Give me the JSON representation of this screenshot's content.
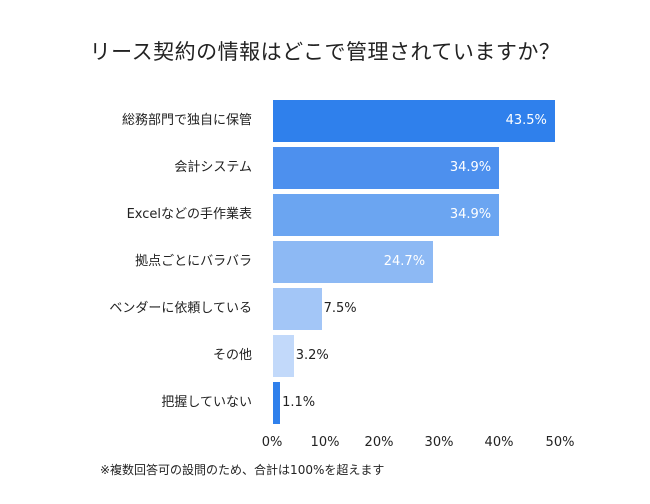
{
  "chart_data": {
    "type": "bar",
    "orientation": "horizontal",
    "title": "リース契約の情報はどこで管理されていますか？",
    "categories": [
      "総務部門で独自に保管",
      "会計システム",
      "Excelなどの手作業表",
      "拠点ごとにバラバラ",
      "ベンダーに依頼している",
      "その他",
      "把握していない"
    ],
    "values": [
      43.5,
      34.9,
      34.9,
      24.7,
      7.5,
      3.2,
      1.1
    ],
    "value_labels": [
      "43.5%",
      "34.9%",
      "34.9%",
      "24.7%",
      "7.5%",
      "3.2%",
      "1.1%"
    ],
    "colors": [
      "#2f80ec",
      "#4d90ee",
      "#6ba5f1",
      "#8db9f4",
      "#a3c6f7",
      "#c2d9fa",
      "#2f80ec"
    ],
    "x_ticks": [
      "0%",
      "10%",
      "20%",
      "30%",
      "40%",
      "50%"
    ],
    "xlim": [
      0,
      50
    ],
    "grid": false,
    "note": "※複数回答可の設問のため、合計は100%を超えます"
  }
}
